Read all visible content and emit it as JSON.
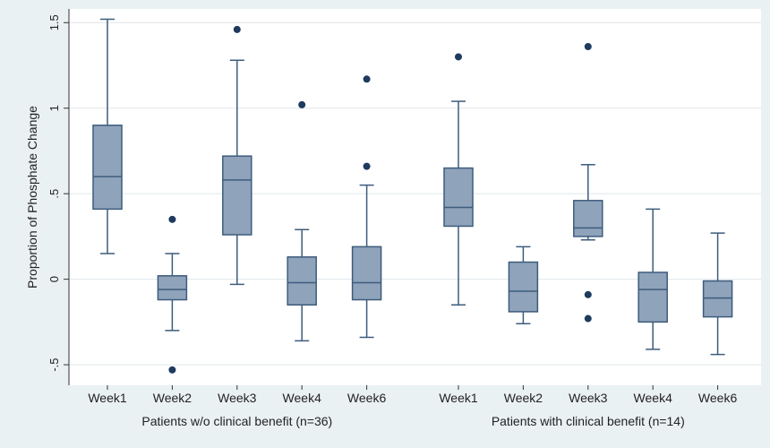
{
  "chart_data": {
    "type": "box",
    "title": "",
    "ylabel": "Proportion of Phosphate Change",
    "ylim": [
      -0.62,
      1.58
    ],
    "yticks": [
      {
        "value": -0.5,
        "label": "-.5"
      },
      {
        "value": 0,
        "label": "0"
      },
      {
        "value": 0.5,
        "label": ".5"
      },
      {
        "value": 1,
        "label": "1"
      },
      {
        "value": 1.5,
        "label": "1.5"
      }
    ],
    "grid": true,
    "colors": {
      "box_fill": "#8fa3bb",
      "box_stroke": "#3d5c7c",
      "outlier": "#1e3a5f",
      "grid": "#dfe6ea",
      "plot_bg": "#ffffff",
      "outer_bg": "#eaf1f3"
    },
    "groups": [
      {
        "label": "Patients w/o clinical benefit (n=36)",
        "boxes": [
          {
            "category": "Week1",
            "whisker_low": 0.15,
            "q1": 0.41,
            "median": 0.6,
            "q3": 0.9,
            "whisker_high": 1.52,
            "outliers": []
          },
          {
            "category": "Week2",
            "whisker_low": -0.3,
            "q1": -0.12,
            "median": -0.06,
            "q3": 0.02,
            "whisker_high": 0.15,
            "outliers": [
              0.35,
              -0.53
            ]
          },
          {
            "category": "Week3",
            "whisker_low": -0.03,
            "q1": 0.26,
            "median": 0.58,
            "q3": 0.72,
            "whisker_high": 1.28,
            "outliers": [
              1.46
            ]
          },
          {
            "category": "Week4",
            "whisker_low": -0.36,
            "q1": -0.15,
            "median": -0.02,
            "q3": 0.13,
            "whisker_high": 0.29,
            "outliers": [
              1.02
            ]
          },
          {
            "category": "Week6",
            "whisker_low": -0.34,
            "q1": -0.12,
            "median": -0.02,
            "q3": 0.19,
            "whisker_high": 0.55,
            "outliers": [
              0.66,
              1.17
            ]
          }
        ]
      },
      {
        "label": "Patients with clinical benefit  (n=14)",
        "boxes": [
          {
            "category": "Week1",
            "whisker_low": -0.15,
            "q1": 0.31,
            "median": 0.42,
            "q3": 0.65,
            "whisker_high": 1.04,
            "outliers": [
              1.3
            ]
          },
          {
            "category": "Week2",
            "whisker_low": -0.26,
            "q1": -0.19,
            "median": -0.07,
            "q3": 0.1,
            "whisker_high": 0.19,
            "outliers": []
          },
          {
            "category": "Week3",
            "whisker_low": 0.23,
            "q1": 0.25,
            "median": 0.3,
            "q3": 0.46,
            "whisker_high": 0.67,
            "outliers": [
              1.36,
              -0.09,
              -0.23
            ]
          },
          {
            "category": "Week4",
            "whisker_low": -0.41,
            "q1": -0.25,
            "median": -0.06,
            "q3": 0.04,
            "whisker_high": 0.41,
            "outliers": []
          },
          {
            "category": "Week6",
            "whisker_low": -0.44,
            "q1": -0.22,
            "median": -0.11,
            "q3": -0.01,
            "whisker_high": 0.27,
            "outliers": []
          }
        ]
      }
    ]
  }
}
